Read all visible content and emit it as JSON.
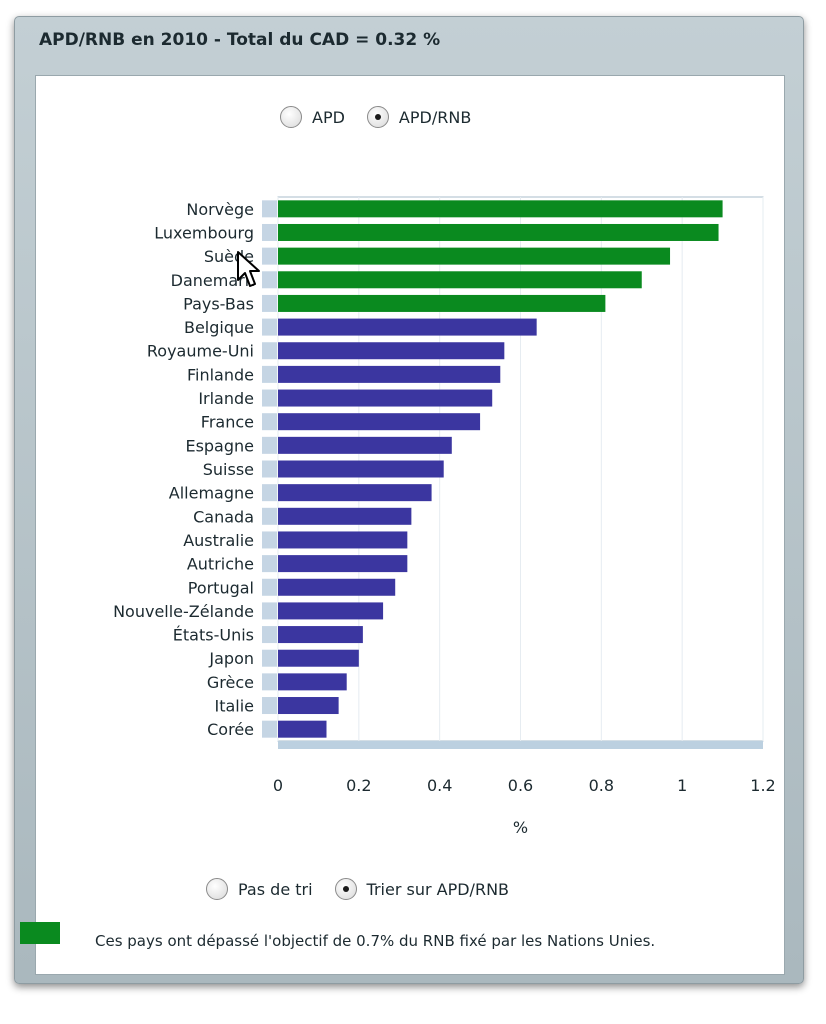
{
  "window": {
    "title": "APD/RNB en 2010 - Total du CAD = 0.32 %"
  },
  "view_toggle": {
    "options": [
      {
        "label": "APD",
        "checked": false
      },
      {
        "label": "APD/RNB",
        "checked": true
      }
    ]
  },
  "sort_toggle": {
    "options": [
      {
        "label": "Pas de tri",
        "checked": false
      },
      {
        "label": "Trier sur APD/RNB",
        "checked": true
      }
    ]
  },
  "legend": {
    "text": "Ces pays ont dépassé l'objectif de 0.7% du RNB fixé par les Nations Unies.",
    "color": "#0a8a1f"
  },
  "colors": {
    "above_target": "#0a8a1f",
    "below_target": "#3b36a0"
  },
  "chart_data": {
    "type": "bar",
    "orientation": "horizontal",
    "title": "APD/RNB en 2010 - Total du CAD = 0.32 %",
    "xlabel": "%",
    "ylabel": "",
    "xlim": [
      0,
      1.2
    ],
    "xticks": [
      "0",
      "0.2",
      "0.4",
      "0.6",
      "0.8",
      "1",
      "1.2"
    ],
    "grid": "vertical",
    "categories": [
      "Norvège",
      "Luxembourg",
      "Suède",
      "Danemark",
      "Pays-Bas",
      "Belgique",
      "Royaume-Uni",
      "Finlande",
      "Irlande",
      "France",
      "Espagne",
      "Suisse",
      "Allemagne",
      "Canada",
      "Australie",
      "Autriche",
      "Portugal",
      "Nouvelle-Zélande",
      "États-Unis",
      "Japon",
      "Grèce",
      "Italie",
      "Corée"
    ],
    "values": [
      1.1,
      1.09,
      0.97,
      0.9,
      0.81,
      0.64,
      0.56,
      0.55,
      0.53,
      0.5,
      0.43,
      0.41,
      0.38,
      0.33,
      0.32,
      0.32,
      0.29,
      0.26,
      0.21,
      0.2,
      0.17,
      0.15,
      0.12
    ],
    "above_target": [
      true,
      true,
      true,
      true,
      true,
      false,
      false,
      false,
      false,
      false,
      false,
      false,
      false,
      false,
      false,
      false,
      false,
      false,
      false,
      false,
      false,
      false,
      false
    ]
  }
}
